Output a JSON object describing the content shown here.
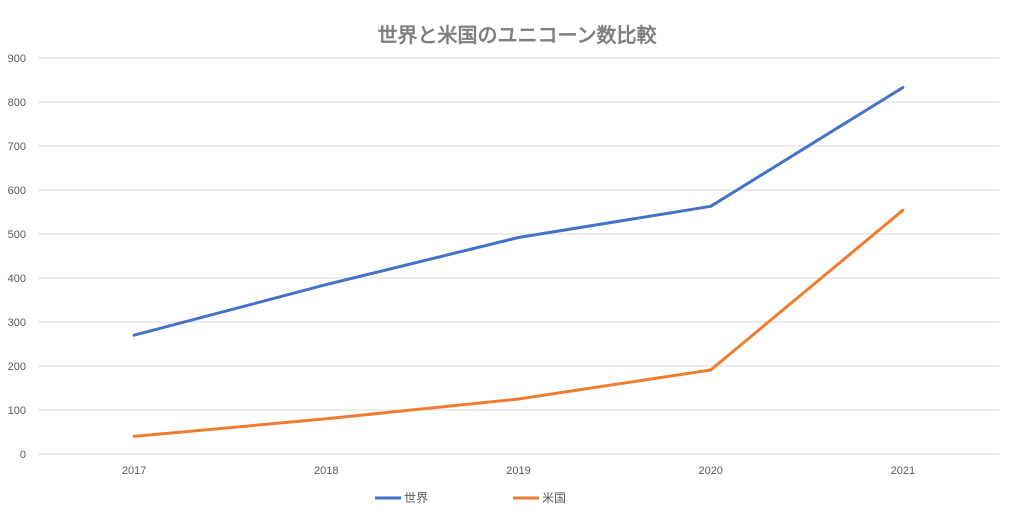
{
  "chart_data": {
    "type": "line",
    "title": "世界と米国のユニコーン数比較",
    "xlabel": "",
    "ylabel": "",
    "categories": [
      "2017",
      "2018",
      "2019",
      "2020",
      "2021"
    ],
    "ylim": [
      0,
      900
    ],
    "yticks": [
      "0",
      "100",
      "200",
      "300",
      "400",
      "500",
      "600",
      "700",
      "800",
      "900"
    ],
    "grid": true,
    "legend_position": "bottom",
    "series": [
      {
        "name": "世界",
        "color": "#4472c4",
        "values": [
          270,
          385,
          492,
          563,
          833
        ]
      },
      {
        "name": "米国",
        "color": "#ed7d31",
        "values": [
          40,
          80,
          125,
          191,
          554
        ]
      }
    ]
  }
}
